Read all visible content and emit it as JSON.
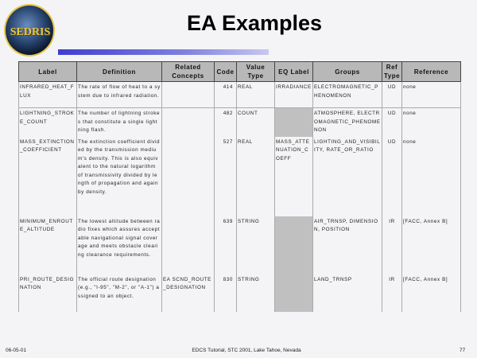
{
  "logo_text": "SEDRIS",
  "title": "EA Examples",
  "table": {
    "headers": [
      "Label",
      "Definition",
      "Related Concepts",
      "Code",
      "Value Type",
      "EQ Label",
      "Groups",
      "Ref Type",
      "Reference"
    ],
    "rows": [
      {
        "label": "INFRARED_HEAT_FLUX",
        "definition": "The rate of flow of heat to a system due to infrared radiation.",
        "related": "",
        "code": "414",
        "value_type": "REAL",
        "eq_label": "IRRADIANCE",
        "groups": "ELECTROMAGNETIC_PHENOMENON",
        "ref_type": "UD",
        "reference": "none"
      },
      {
        "label": "LIGHTNING_STROKE_COUNT",
        "definition": "The number of lightning strokes that constitute a single lightning flash.",
        "related": "",
        "code": "482",
        "value_type": "COUNT",
        "eq_label": "",
        "groups": "ATMOSPHERE, ELECTROMAGNETIC_PHENOMENON",
        "ref_type": "UD",
        "reference": "none"
      },
      {
        "label": "MASS_EXTINCTION_COEFFICIENT",
        "definition": "The extinction coefficient divided by the transmission medium's density. This is also equivalent to the natural logarithm of transmissivity divided by length of propagation and again by density.",
        "related": "",
        "code": "527",
        "value_type": "REAL",
        "eq_label": "MASS_ATTENUATION_COEFF",
        "groups": "LIGHTING_AND_VISIBILITY, RATE_OR_RATIO",
        "ref_type": "UD",
        "reference": "none"
      },
      {
        "label": "MINIMUM_ENROUTE_ALTITUDE",
        "definition": "The lowest altitude between radio fixes which assures acceptable navigational signal coverage and meets obstacle clearing clearance requirements.",
        "related": "",
        "code": "639",
        "value_type": "STRING",
        "eq_label": "",
        "groups": "AIR_TRNSP, DIMENSION, POSITION",
        "ref_type": "IR",
        "reference": "[FACC, Annex B]"
      },
      {
        "label": "PRI_ROUTE_DESIGNATION",
        "definition": "The official route designation (e.g., \"I-95\", \"M-2\", or \"A-1\") assigned to an object.",
        "related": "EA SCND_ROUTE_DESIGNATION",
        "code": "830",
        "value_type": "STRING",
        "eq_label": "",
        "groups": "LAND_TRNSP",
        "ref_type": "IR",
        "reference": "[FACC, Annex B]"
      }
    ]
  },
  "footer": {
    "date": "06-05-01",
    "center": "EDCS Tutorial, STC 2001, Lake Tahoe, Nevada",
    "page": "77"
  }
}
